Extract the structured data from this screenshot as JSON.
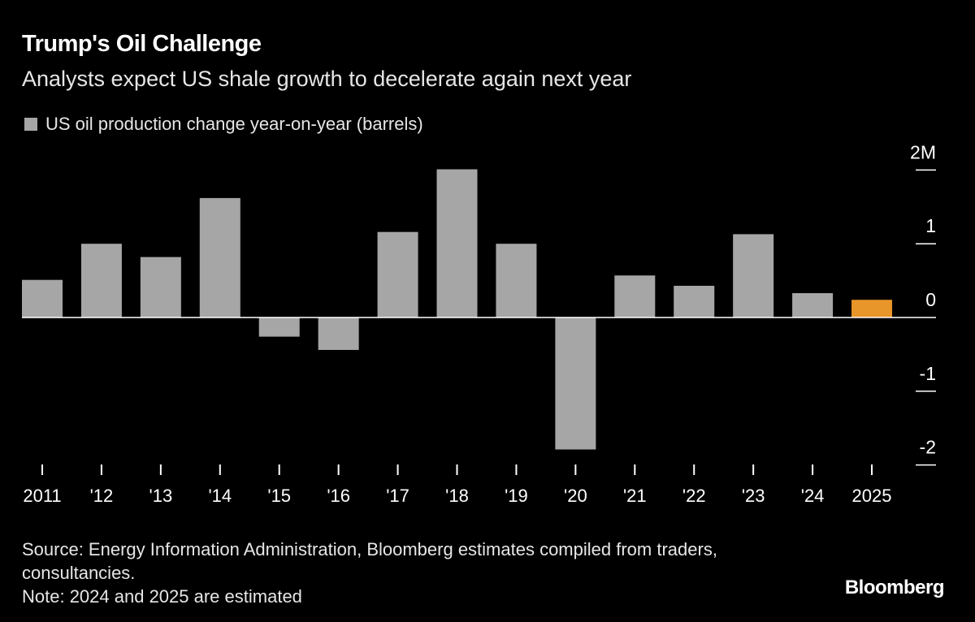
{
  "chart_data": {
    "type": "bar",
    "title": "Trump's Oil Challenge",
    "subtitle": "Analysts expect US shale growth to decelerate again next year",
    "legend": [
      {
        "name": "US oil production change year-on-year (barrels)",
        "color": "#a6a6a6"
      }
    ],
    "legend_placement": "top-left",
    "categories": [
      "2011",
      "'12",
      "'13",
      "'14",
      "'15",
      "'16",
      "'17",
      "'18",
      "'19",
      "'20",
      "'21",
      "'22",
      "'23",
      "'24",
      "2025"
    ],
    "series": [
      {
        "name": "US oil production change year-on-year (barrels)",
        "values": [
          0.51,
          1.0,
          0.82,
          1.62,
          -0.26,
          -0.44,
          1.16,
          2.01,
          1.0,
          -1.79,
          0.57,
          0.43,
          1.13,
          0.33,
          0.24
        ],
        "unit": "M"
      }
    ],
    "bar_colors": {
      "default": "#a6a6a6",
      "highlight": "#e8952a",
      "highlight_category": "2025"
    },
    "y_ticks": [
      {
        "value": 2,
        "label": "2M"
      },
      {
        "value": 1,
        "label": "1"
      },
      {
        "value": 0,
        "label": "0"
      },
      {
        "value": -1,
        "label": "-1"
      },
      {
        "value": -2,
        "label": "-2"
      }
    ],
    "ylim": [
      -2,
      2
    ],
    "y_axis_position": "right",
    "grid": false
  },
  "footer": {
    "source": "Source: Energy Information Administration, Bloomberg estimates compiled from traders, consultancies.",
    "note": "Note: 2024 and 2025 are estimated",
    "brand": "Bloomberg"
  }
}
